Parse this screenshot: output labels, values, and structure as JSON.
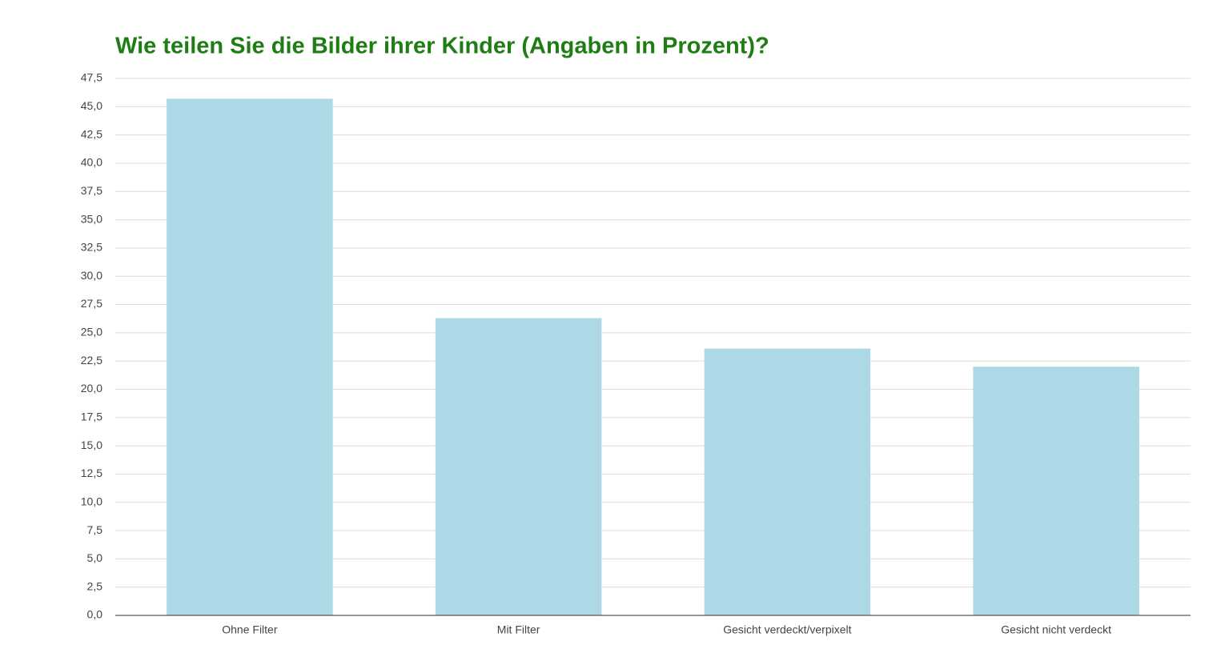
{
  "chart_data": {
    "type": "bar",
    "title": "Wie teilen Sie die Bilder ihrer Kinder (Angaben in Prozent)?",
    "categories": [
      "Ohne Filter",
      "Mit Filter",
      "Gesicht verdeckt/verpixelt",
      "Gesicht nicht verdeckt"
    ],
    "values": [
      45.7,
      26.3,
      23.6,
      22.0
    ],
    "color": "#add8e6",
    "ylim": [
      0,
      47.5
    ],
    "yticks": [
      {
        "value": 0,
        "label": "0,0"
      },
      {
        "value": 2.5,
        "label": "2,5"
      },
      {
        "value": 5,
        "label": "5,0"
      },
      {
        "value": 7.5,
        "label": "7,5"
      },
      {
        "value": 10,
        "label": "10,0"
      },
      {
        "value": 12.5,
        "label": "12,5"
      },
      {
        "value": 15,
        "label": "15,0"
      },
      {
        "value": 17.5,
        "label": "17,5"
      },
      {
        "value": 20,
        "label": "20,0"
      },
      {
        "value": 22.5,
        "label": "22,5"
      },
      {
        "value": 25,
        "label": "25,0"
      },
      {
        "value": 27.5,
        "label": "27,5"
      },
      {
        "value": 30,
        "label": "30,0"
      },
      {
        "value": 32.5,
        "label": "32,5"
      },
      {
        "value": 35,
        "label": "35,0"
      },
      {
        "value": 37.5,
        "label": "37,5"
      },
      {
        "value": 40,
        "label": "40,0"
      },
      {
        "value": 42.5,
        "label": "42,5"
      },
      {
        "value": 45,
        "label": "45,0"
      },
      {
        "value": 47.5,
        "label": "47,5"
      }
    ],
    "grid": true
  }
}
